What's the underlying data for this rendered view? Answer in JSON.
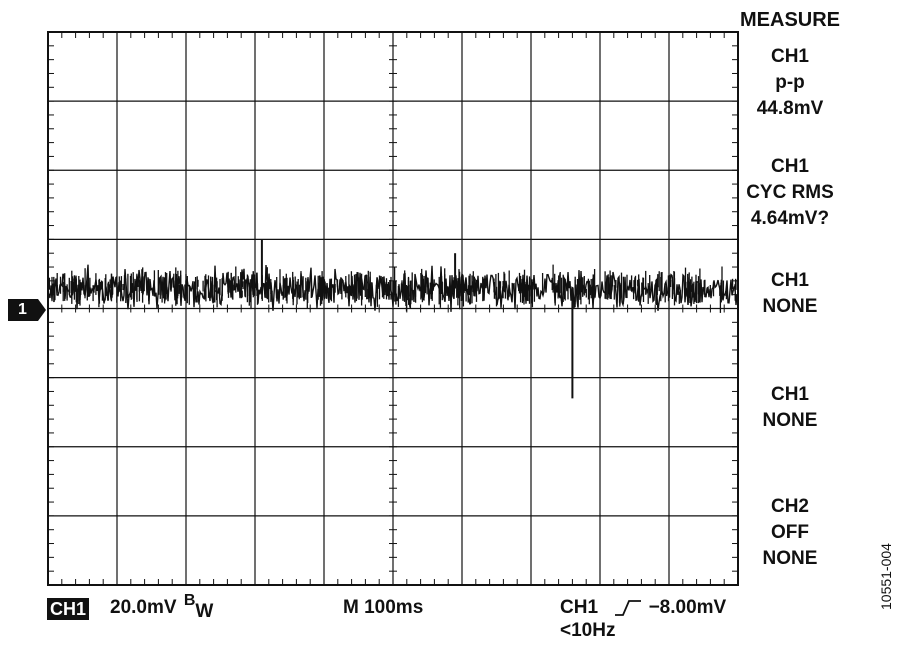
{
  "chart_data": {
    "type": "line",
    "title": "",
    "xlabel": "",
    "ylabel": "",
    "grid": true,
    "divisions": {
      "x": 10,
      "y": 8
    },
    "series": [
      {
        "channel": "CH1",
        "baseline_div": 0,
        "peak_to_peak_mV": 44.8,
        "cycle_rms_mV": 4.64,
        "notable_spikes_div": [
          {
            "t_div": 3.1,
            "v_div": 1.0
          },
          {
            "t_div": 5.9,
            "v_div": 0.8
          },
          {
            "t_div": 7.6,
            "v_div": -1.3
          }
        ]
      }
    ],
    "marker_label": "1"
  },
  "measure_panel": {
    "title": "MEASURE",
    "blocks": [
      {
        "lines": [
          "CH1",
          "p-p",
          "44.8mV"
        ]
      },
      {
        "lines": [
          "CH1",
          "CYC RMS",
          "4.64mV?"
        ]
      },
      {
        "lines": [
          "CH1",
          "NONE"
        ]
      },
      {
        "lines": [
          "CH1",
          "NONE"
        ]
      },
      {
        "lines": [
          "CH2",
          "OFF",
          "NONE"
        ]
      }
    ]
  },
  "footer": {
    "channel_badge": "CH1",
    "scale": "20.0mV",
    "bw_b": "B",
    "bw_w": "W",
    "timebase": "M 100ms",
    "trigger_channel": "CH1",
    "trigger_level": "−8.00mV",
    "trigger_filter": "<10Hz"
  },
  "figure_id": "10551-004",
  "colors": {
    "trace": "#111111",
    "grid": "#111111",
    "background": "#ffffff"
  }
}
